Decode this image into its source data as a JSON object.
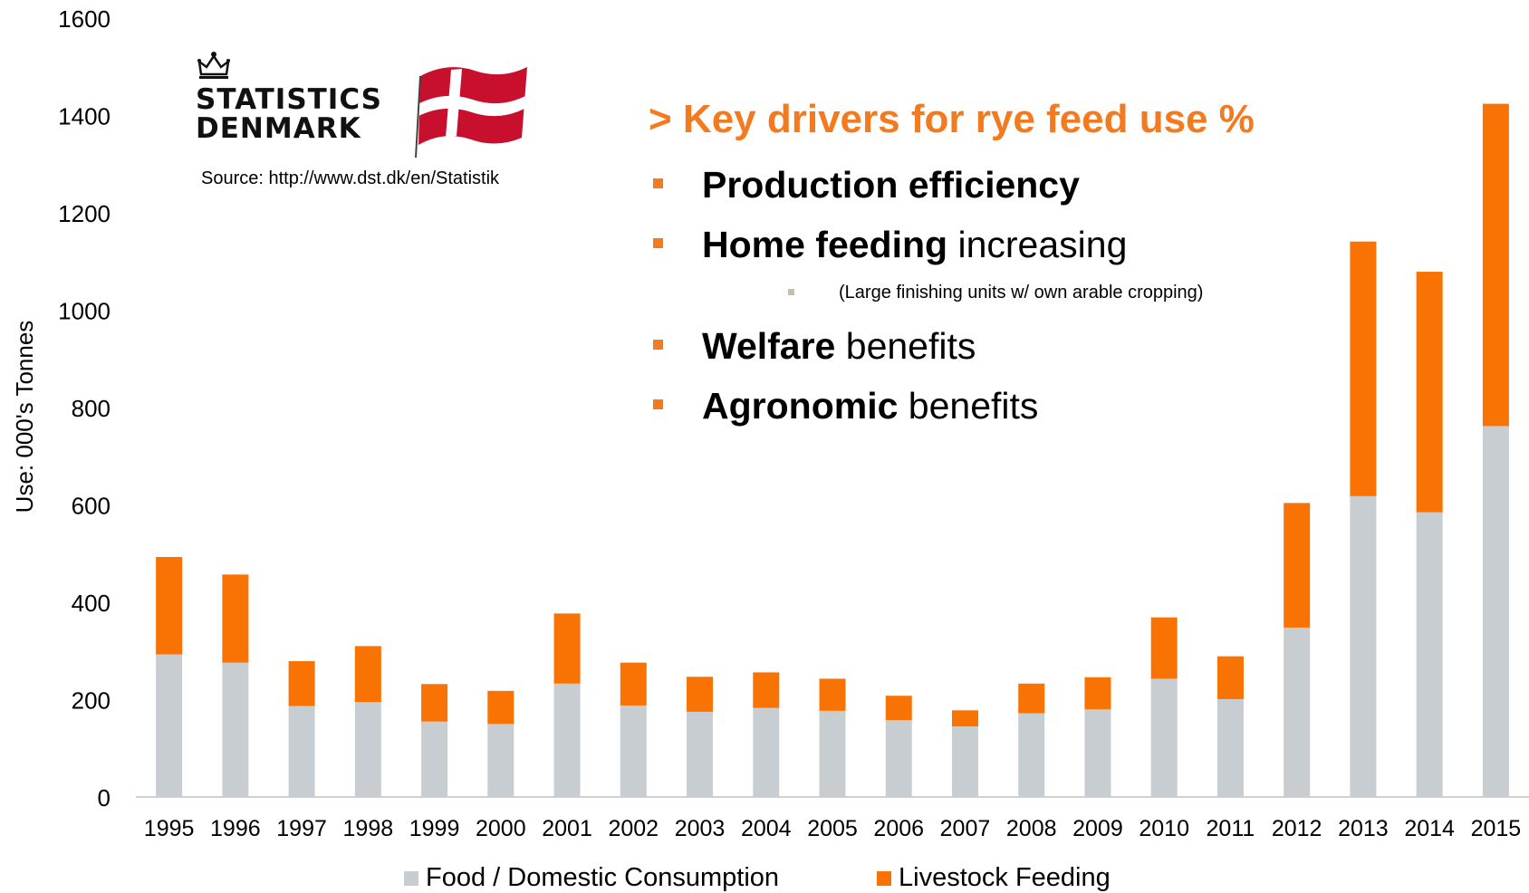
{
  "chart_data": {
    "type": "bar",
    "stacked": true,
    "categories": [
      "1995",
      "1996",
      "1997",
      "1998",
      "1999",
      "2000",
      "2001",
      "2002",
      "2003",
      "2004",
      "2005",
      "2006",
      "2007",
      "2008",
      "2009",
      "2010",
      "2011",
      "2012",
      "2013",
      "2014",
      "2015"
    ],
    "series": [
      {
        "name": "Food / Domestic Consumption",
        "color": "#c8cdd2",
        "values": [
          293,
          276,
          187,
          195,
          155,
          150,
          233,
          188,
          175,
          183,
          177,
          158,
          145,
          172,
          180,
          243,
          201,
          348,
          618,
          585,
          762
        ]
      },
      {
        "name": "Livestock Feeding",
        "color": "#f97304",
        "values": [
          200,
          181,
          92,
          115,
          77,
          68,
          144,
          88,
          72,
          73,
          66,
          50,
          33,
          61,
          66,
          126,
          88,
          256,
          523,
          494,
          662
        ]
      }
    ],
    "ylabel": "Use: 000's Tonnes",
    "ylim": [
      0,
      1600
    ],
    "yticks": [
      "0",
      "200",
      "400",
      "600",
      "800",
      "1000",
      "1200",
      "1400",
      "1600"
    ],
    "grid": false,
    "legend_position": "bottom"
  },
  "logo": {
    "line1": "STATISTICS",
    "line2": "DENMARK"
  },
  "source": "Source: http://www.dst.dk/en/Statistik",
  "drivers": {
    "title": "> Key drivers for rye feed use %",
    "items": [
      {
        "bold": "Production efficiency",
        "rest": ""
      },
      {
        "bold": "Home feeding",
        "rest": " increasing"
      },
      {
        "bold": "Welfare",
        "rest": " benefits"
      },
      {
        "bold": "Agronomic",
        "rest": " benefits"
      }
    ],
    "sub_item": "(Large finishing units w/ own arable cropping)"
  },
  "colors": {
    "accent": "#f37a1f",
    "food": "#c8cdd2",
    "livestock": "#f97304"
  }
}
